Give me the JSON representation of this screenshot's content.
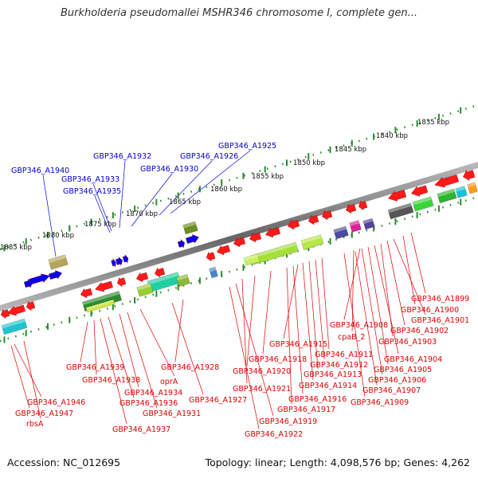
{
  "title": "Burkholderia pseudomallei MSHR346 chromosome I, complete gen...",
  "footer": {
    "accession": "Accession: NC_012695",
    "summary": "Topology: linear; Length: 4,098,576 bp; Genes: 4,262"
  },
  "colors": {
    "gene_forward": "#ff1a1a",
    "gene_reverse": "#0000ee",
    "label_blue": "#0000cc",
    "label_red": "#dd0000",
    "axis": "#888888",
    "ticks": "#2a8a2a"
  },
  "scale_labels": [
    "1835 kbp",
    "1840 kbp",
    "1845 kbp",
    "1850 kbp",
    "1855 kbp",
    "1860 kbp",
    "1865 kbp",
    "1870 kbp",
    "1875 kbp",
    "1880 kbp",
    "1885 kbp"
  ],
  "blue_labels": [
    "GBP346_A1940",
    "GBP346_A1933",
    "GBP346_A1935",
    "GBP346_A1932",
    "GBP346_A1930",
    "GBP346_A1926",
    "GBP346_A1925"
  ],
  "red_labels": [
    "GBP346_A1899",
    "GBP346_A1900",
    "GBP346_A1901",
    "GBP346_A1902",
    "GBP346_A1903",
    "GBP346_A1908",
    "cpaB_2",
    "GBP346_A1904",
    "GBP346_A1905",
    "GBP346_A1906",
    "GBP346_A1907",
    "GBP346_A1909",
    "GBP346_A1915",
    "GBP346_A1911",
    "GBP346_A1912",
    "GBP346_A1913",
    "GBP346_A1914",
    "GBP346_A1918",
    "GBP346_A1920",
    "GBP346_A1921",
    "GBP346_A1916",
    "GBP346_A1917",
    "GBP346_A1919",
    "GBP346_A1922",
    "GBP346_A1928",
    "GBP346_A1927",
    "GBP346_A1939",
    "GBP346_A1938",
    "oprA",
    "GBP346_A1934",
    "GBP346_A1936",
    "GBP346_A1931",
    "GBP346_A1937",
    "GBP346_A1946",
    "GBP346_A1947",
    "rbsA"
  ]
}
